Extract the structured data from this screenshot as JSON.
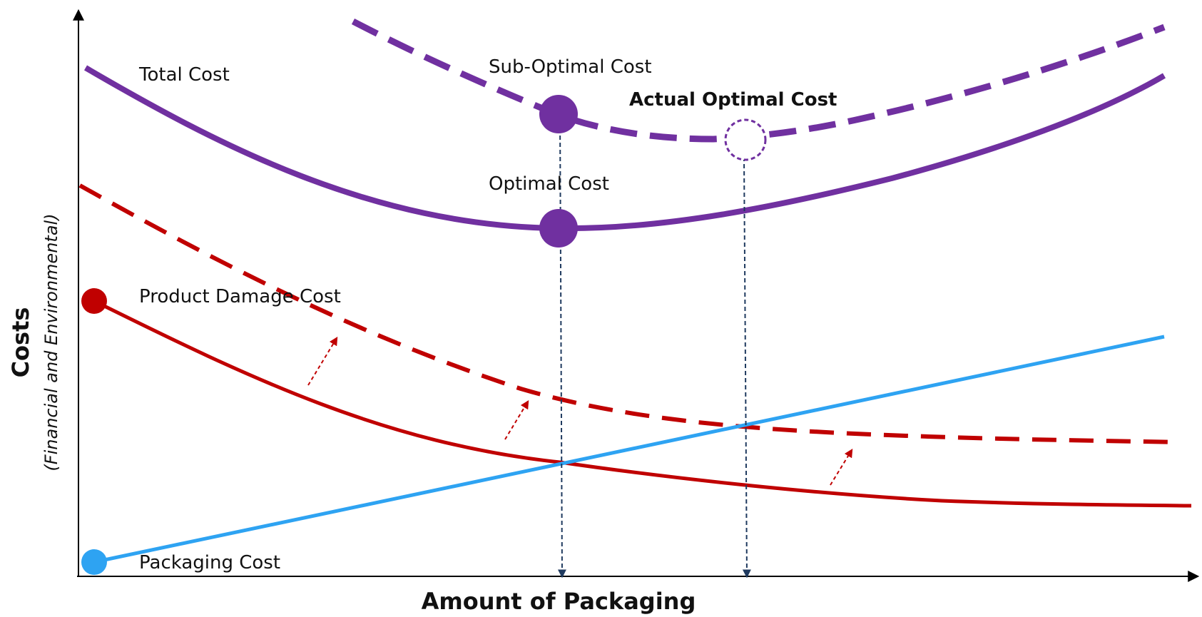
{
  "diagram": {
    "x_axis_label": "Amount of Packaging",
    "y_axis_label": "Costs",
    "y_axis_sublabel": "(Financial and Environmental)",
    "labels": {
      "total_cost": "Total Cost",
      "sub_optimal_cost": "Sub-Optimal Cost",
      "actual_optimal_cost": "Actual Optimal Cost",
      "optimal_cost": "Optimal Cost",
      "product_damage_cost": "Product Damage Cost",
      "packaging_cost": "Packaging Cost"
    },
    "colors": {
      "total_cost": "#7030A0",
      "product_damage": "#C00000",
      "packaging": "#2EA3F2",
      "guide_lines": "#1F3A5F",
      "axis": "#000000"
    }
  }
}
